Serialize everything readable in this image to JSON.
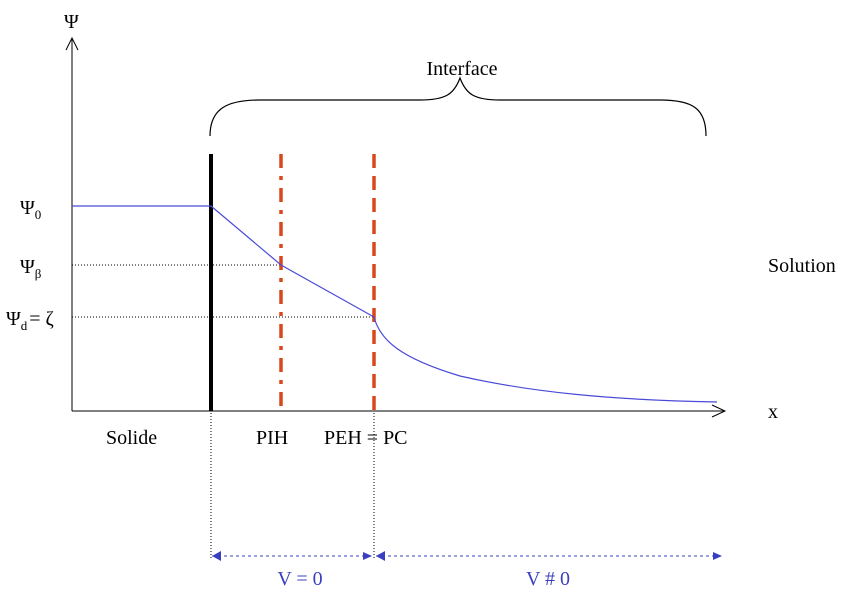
{
  "axes": {
    "y_label": "Ψ",
    "x_label": "x"
  },
  "labels": {
    "interface": "Interface",
    "solution": "Solution",
    "solide": "Solide",
    "pih": "PIH",
    "peh_pc": "PEH = PC",
    "v_zero": "V = 0",
    "v_nonzero": "V # 0"
  },
  "potentials": {
    "psi0": {
      "symbol": "Ψ",
      "sub": "0"
    },
    "psibeta": {
      "symbol": "Ψ",
      "sub": "β"
    },
    "psid": {
      "symbol": "Ψ",
      "sub": "d",
      "suffix": "= ζ"
    }
  },
  "colors": {
    "curve": "#4a4ad8",
    "planes": "#d9481c",
    "wall": "#000000",
    "arrows": "#3a3fc0",
    "axes": "#000000"
  }
}
